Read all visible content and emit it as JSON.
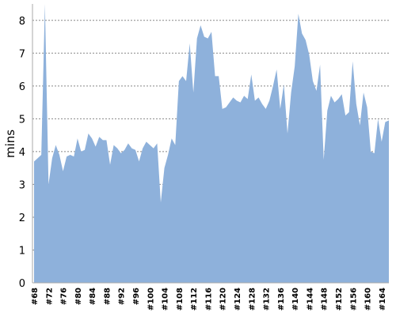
{
  "chart_data": {
    "type": "area",
    "ylabel": "mins",
    "color": "#8eb1db",
    "categories": [
      "#68",
      null,
      null,
      null,
      "#72",
      null,
      null,
      null,
      "#76",
      null,
      null,
      null,
      "#80",
      null,
      null,
      null,
      "#84",
      null,
      null,
      null,
      "#88",
      null,
      null,
      null,
      "#92",
      null,
      null,
      null,
      "#96",
      null,
      null,
      null,
      "#100",
      null,
      null,
      null,
      "#104",
      null,
      null,
      null,
      "#108",
      null,
      null,
      null,
      "#112",
      null,
      null,
      null,
      "#116",
      null,
      null,
      null,
      "#120",
      null,
      null,
      null,
      "#124",
      null,
      null,
      null,
      "#128",
      null,
      null,
      null,
      "#132",
      null,
      null,
      null,
      "#136",
      null,
      null,
      null,
      "#140",
      null,
      null,
      null,
      "#144",
      null,
      null,
      null,
      "#148",
      null,
      null,
      null,
      "#152",
      null,
      null,
      null,
      "#156",
      null,
      null,
      null,
      "#160",
      null,
      null,
      null,
      "#164",
      null,
      null
    ],
    "values": [
      3.7,
      3.8,
      3.9,
      8.5,
      3.0,
      3.8,
      4.2,
      3.9,
      3.4,
      3.85,
      3.9,
      3.85,
      4.4,
      4.0,
      4.05,
      4.55,
      4.4,
      4.15,
      4.45,
      4.35,
      4.35,
      3.6,
      4.2,
      4.1,
      3.95,
      4.05,
      4.25,
      4.1,
      4.05,
      3.7,
      4.1,
      4.3,
      4.2,
      4.1,
      4.25,
      2.45,
      3.5,
      3.9,
      4.4,
      4.2,
      6.15,
      6.3,
      6.15,
      7.3,
      5.8,
      7.45,
      7.85,
      7.5,
      7.45,
      7.65,
      6.3,
      6.3,
      5.3,
      5.35,
      5.5,
      5.65,
      5.55,
      5.5,
      5.7,
      5.6,
      6.35,
      5.55,
      5.65,
      5.45,
      5.3,
      5.55,
      6.0,
      6.5,
      5.3,
      6.05,
      4.55,
      5.8,
      6.6,
      8.2,
      7.6,
      7.4,
      6.95,
      6.15,
      5.85,
      6.65,
      3.75,
      5.25,
      5.7,
      5.5,
      5.6,
      5.75,
      5.1,
      5.2,
      6.75,
      5.45,
      4.8,
      5.8,
      5.35,
      4.0,
      3.95,
      5.0,
      4.3,
      4.9,
      4.95
    ],
    "ylim": [
      0,
      8.5
    ],
    "yticks": [
      0,
      1,
      2,
      3,
      4,
      5,
      6,
      7,
      8
    ],
    "grid": true
  }
}
